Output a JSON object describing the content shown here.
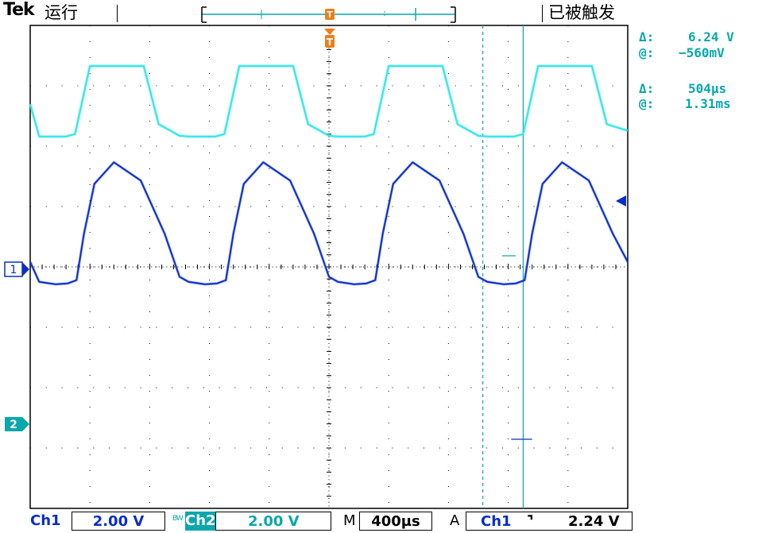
{
  "header": {
    "logo": "Tek",
    "run_status": "运行",
    "trigger_status": "已被触发",
    "trigger_marker_label": "T"
  },
  "readouts": {
    "voltage_delta_label": "Δ:",
    "voltage_delta_value": "6.24 V",
    "voltage_at_label": "@:",
    "voltage_at_value": "−560mV",
    "time_delta_label": "Δ:",
    "time_delta_value": "504µs",
    "time_at_label": "@:",
    "time_at_value": "1.31ms"
  },
  "channel_markers": {
    "ch1": "1",
    "ch2": "2"
  },
  "footer": {
    "ch1_label": "Ch1",
    "ch1_scale": "2.00 V",
    "bw_label": "BW",
    "ch2_label": "Ch2",
    "ch2_scale": "2.00 V",
    "timebase_label": "M",
    "timebase_value": "400µs",
    "trigger_mode": "A",
    "trigger_source": "Ch1",
    "trigger_slope": "⌝",
    "trigger_level": "2.24 V"
  },
  "colors": {
    "ch1": "#0a2ec8",
    "ch2": "#2ee6ea",
    "cursor": "#0aa7ab",
    "trigger": "#f07d1a"
  },
  "chart_data": {
    "type": "line",
    "title": "",
    "xlabel": "",
    "ylabel": "",
    "x_units": "µs",
    "y_units": "V",
    "x_range": [
      0,
      4000
    ],
    "y_divisions": 8,
    "x_divisions": 10,
    "series": [
      {
        "name": "Ch1",
        "x": [
          0,
          60,
          170,
          250,
          310,
          360,
          430,
          560,
          740,
          900,
          1000,
          1060,
          1170,
          1250,
          1310,
          1360,
          1430,
          1560,
          1740,
          1900,
          2000,
          2060,
          2170,
          2250,
          2310,
          2360,
          2430,
          2560,
          2740,
          2900,
          3000,
          3060,
          3170,
          3250,
          3310,
          3360,
          3430,
          3560,
          3740,
          3900,
          4000
        ],
        "volts": [
          0.3,
          -0.9,
          -1.05,
          -1.0,
          -0.8,
          2.0,
          5.0,
          6.3,
          5.2,
          2.0,
          -0.6,
          -0.9,
          -1.05,
          -1.0,
          -0.8,
          2.0,
          5.0,
          6.3,
          5.2,
          2.0,
          -0.6,
          -0.9,
          -1.05,
          -1.0,
          -0.8,
          2.0,
          5.0,
          6.3,
          5.2,
          2.0,
          -0.6,
          -0.9,
          -1.05,
          -1.0,
          -0.8,
          2.0,
          5.0,
          6.3,
          5.2,
          2.0,
          0.3
        ],
        "ground_div": 4.0
      },
      {
        "name": "Ch2",
        "x": [
          0,
          60,
          240,
          300,
          400,
          760,
          860,
          1000,
          1060,
          1240,
          1300,
          1400,
          1760,
          1860,
          2000,
          2060,
          2240,
          2300,
          2400,
          2760,
          2860,
          3000,
          3060,
          3240,
          3300,
          3400,
          3760,
          3860,
          4000
        ],
        "volts": [
          1.8,
          -0.15,
          -0.15,
          0.0,
          4.1,
          4.1,
          0.6,
          -0.1,
          -0.15,
          -0.15,
          0.0,
          4.1,
          4.1,
          0.6,
          -0.1,
          -0.15,
          -0.15,
          0.0,
          4.1,
          4.1,
          0.6,
          -0.1,
          -0.15,
          -0.15,
          0.0,
          4.1,
          4.1,
          0.6,
          0.2
        ],
        "ground_div": 1.8
      }
    ],
    "cursors": {
      "horizontal_delta": "6.24 V",
      "vertical_delta": "504µs"
    }
  }
}
